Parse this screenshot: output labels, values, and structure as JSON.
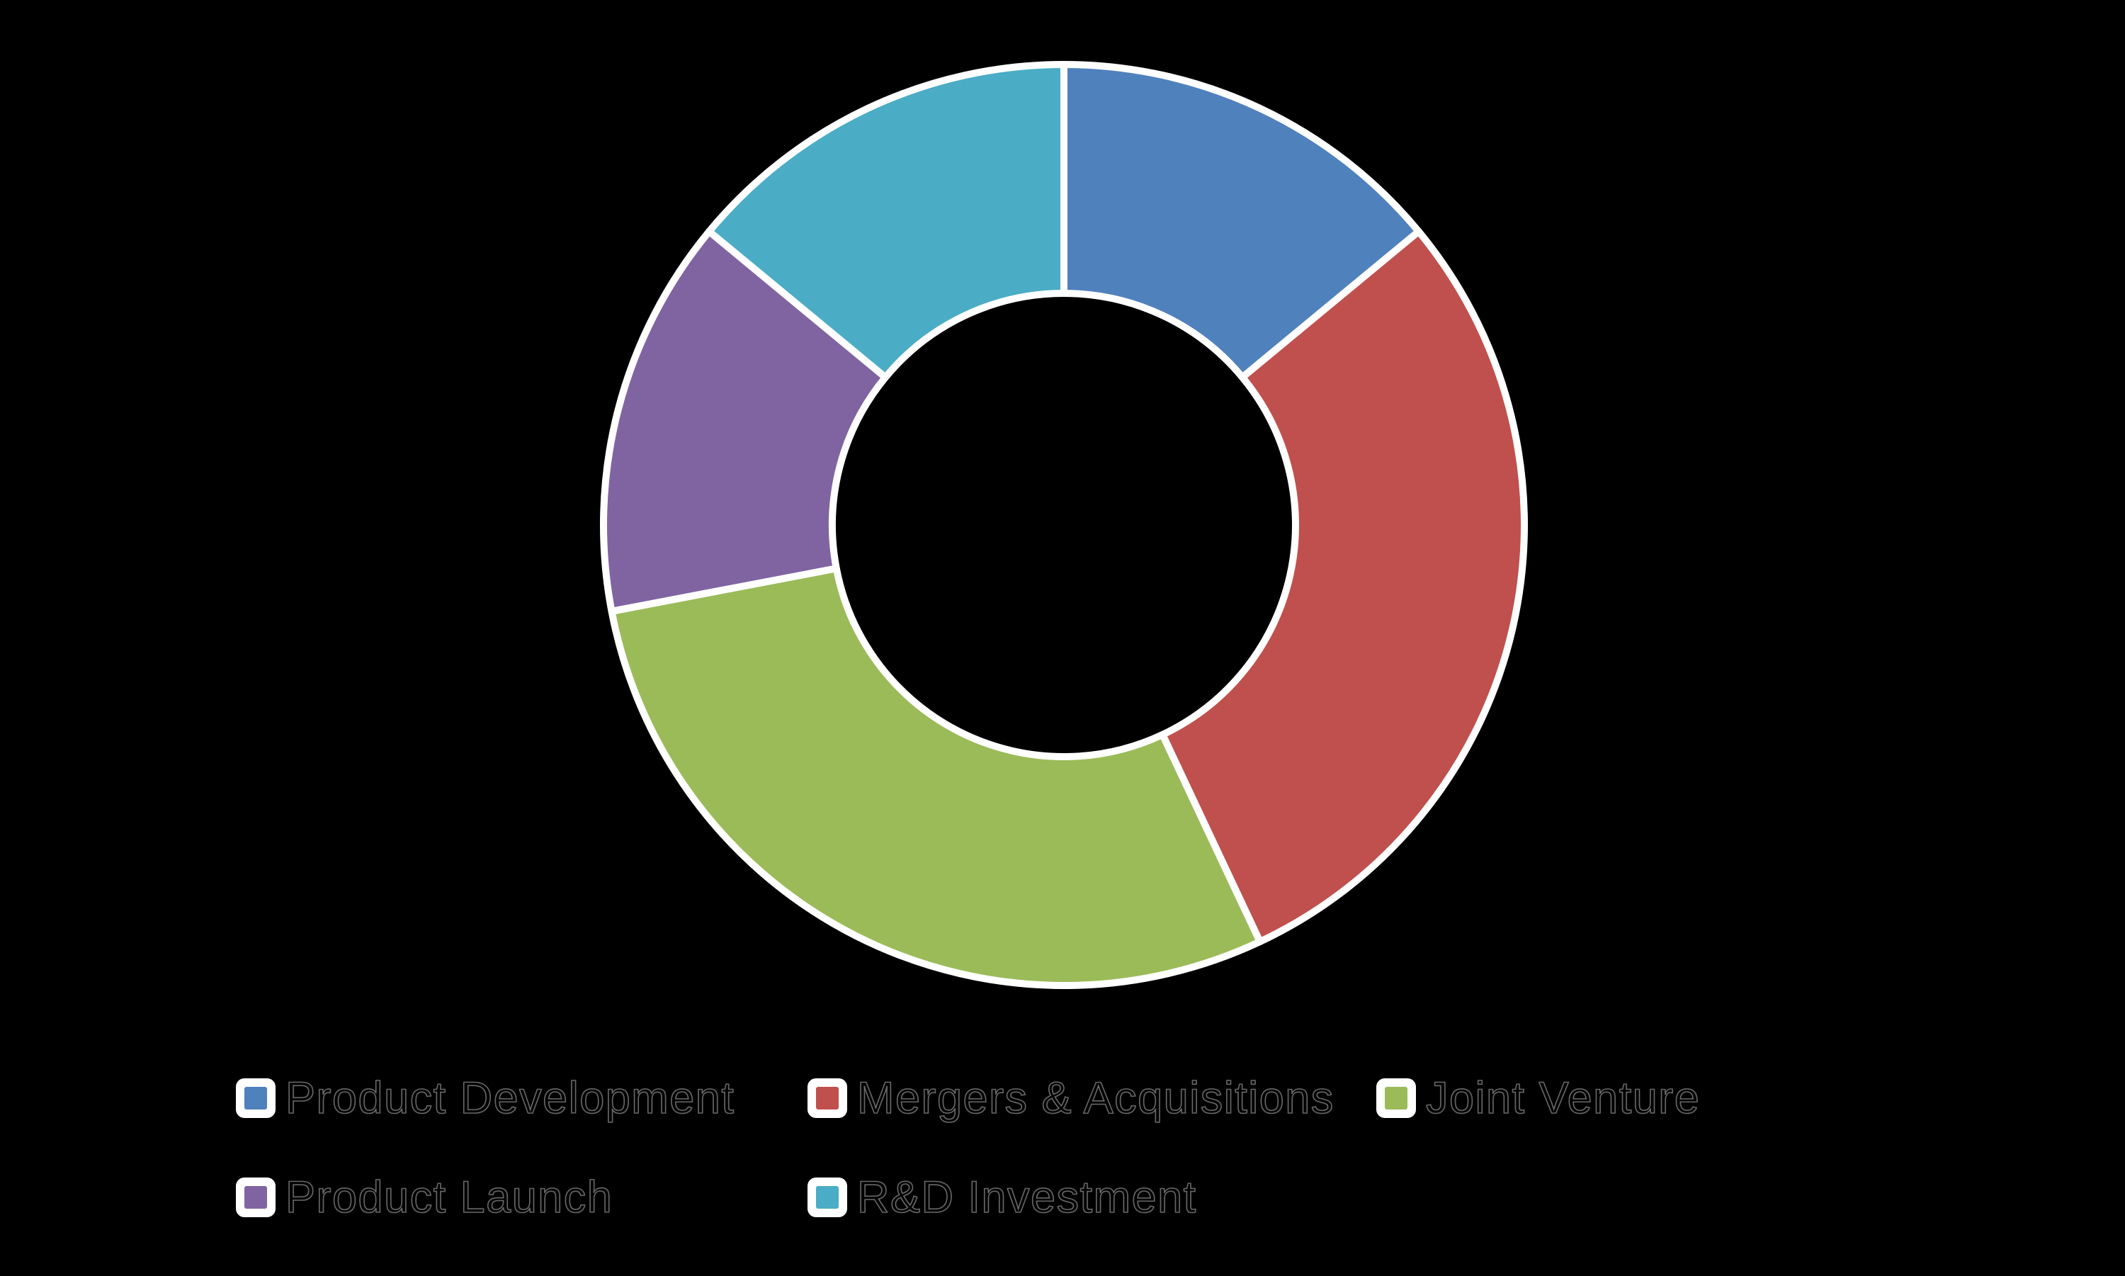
{
  "chart_data": {
    "type": "pie",
    "subtype": "donut",
    "title": "",
    "categories": [
      "Product Development",
      "Mergers & Acquisitions",
      "Joint Venture",
      "Product Launch",
      "R&D Investment"
    ],
    "values": [
      14,
      29,
      29,
      14,
      14
    ],
    "unit": "percent (estimated from arc angles, no data labels shown)",
    "colors": [
      "#4F81BD",
      "#C0504D",
      "#9BBB59",
      "#8064A2",
      "#4BACC6"
    ],
    "start_angle_deg": 0,
    "direction": "clockwise",
    "inner_radius_ratio": 0.5,
    "slice_border_color": "#FFFFFF",
    "background_color": "#000000",
    "legend_position": "bottom",
    "legend_rows": [
      [
        "Product Development",
        "Mergers & Acquisitions",
        "Joint Venture"
      ],
      [
        "Product Launch",
        "R&D Investment"
      ]
    ]
  }
}
